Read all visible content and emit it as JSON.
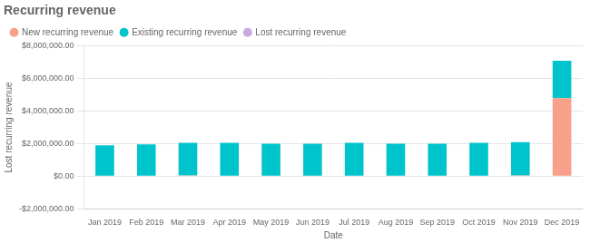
{
  "chart_data": {
    "type": "bar",
    "title": "Recurring revenue",
    "x_label": "Date",
    "y_label": "Lost recurring revenue",
    "categories": [
      "Jan 2019",
      "Feb 2019",
      "Mar 2019",
      "Apr 2019",
      "May 2019",
      "Jun 2019",
      "Jul 2019",
      "Aug 2019",
      "Sep 2019",
      "Oct 2019",
      "Nov 2019",
      "Dec 2019"
    ],
    "series": [
      {
        "name": "New recurring revenue",
        "color": "#F8A08A",
        "values": [
          0,
          0,
          50000,
          0,
          0,
          0,
          0,
          0,
          0,
          0,
          50000,
          4800000
        ]
      },
      {
        "name": "Existing recurring revenue",
        "color": "#00C4CC",
        "values": [
          1900000,
          1950000,
          2000000,
          2050000,
          2000000,
          2000000,
          2050000,
          2000000,
          2000000,
          2050000,
          2050000,
          2300000
        ]
      },
      {
        "name": "Lost recurring revenue",
        "color": "#C9A8E0",
        "values": [
          0,
          0,
          0,
          0,
          0,
          0,
          0,
          0,
          0,
          0,
          0,
          0
        ]
      }
    ],
    "stacked": true,
    "ylim": [
      -2000000,
      8000000
    ],
    "yticks": [
      {
        "value": -2000000,
        "label": "-$2,000,000.00"
      },
      {
        "value": 0,
        "label": "$0.00"
      },
      {
        "value": 2000000,
        "label": "$2,000,000.00"
      },
      {
        "value": 4000000,
        "label": "$4,000,000.00"
      },
      {
        "value": 6000000,
        "label": "$6,000,000.00"
      },
      {
        "value": 8000000,
        "label": "$8,000,000.00"
      }
    ],
    "grid": true,
    "legend": "upper left"
  }
}
